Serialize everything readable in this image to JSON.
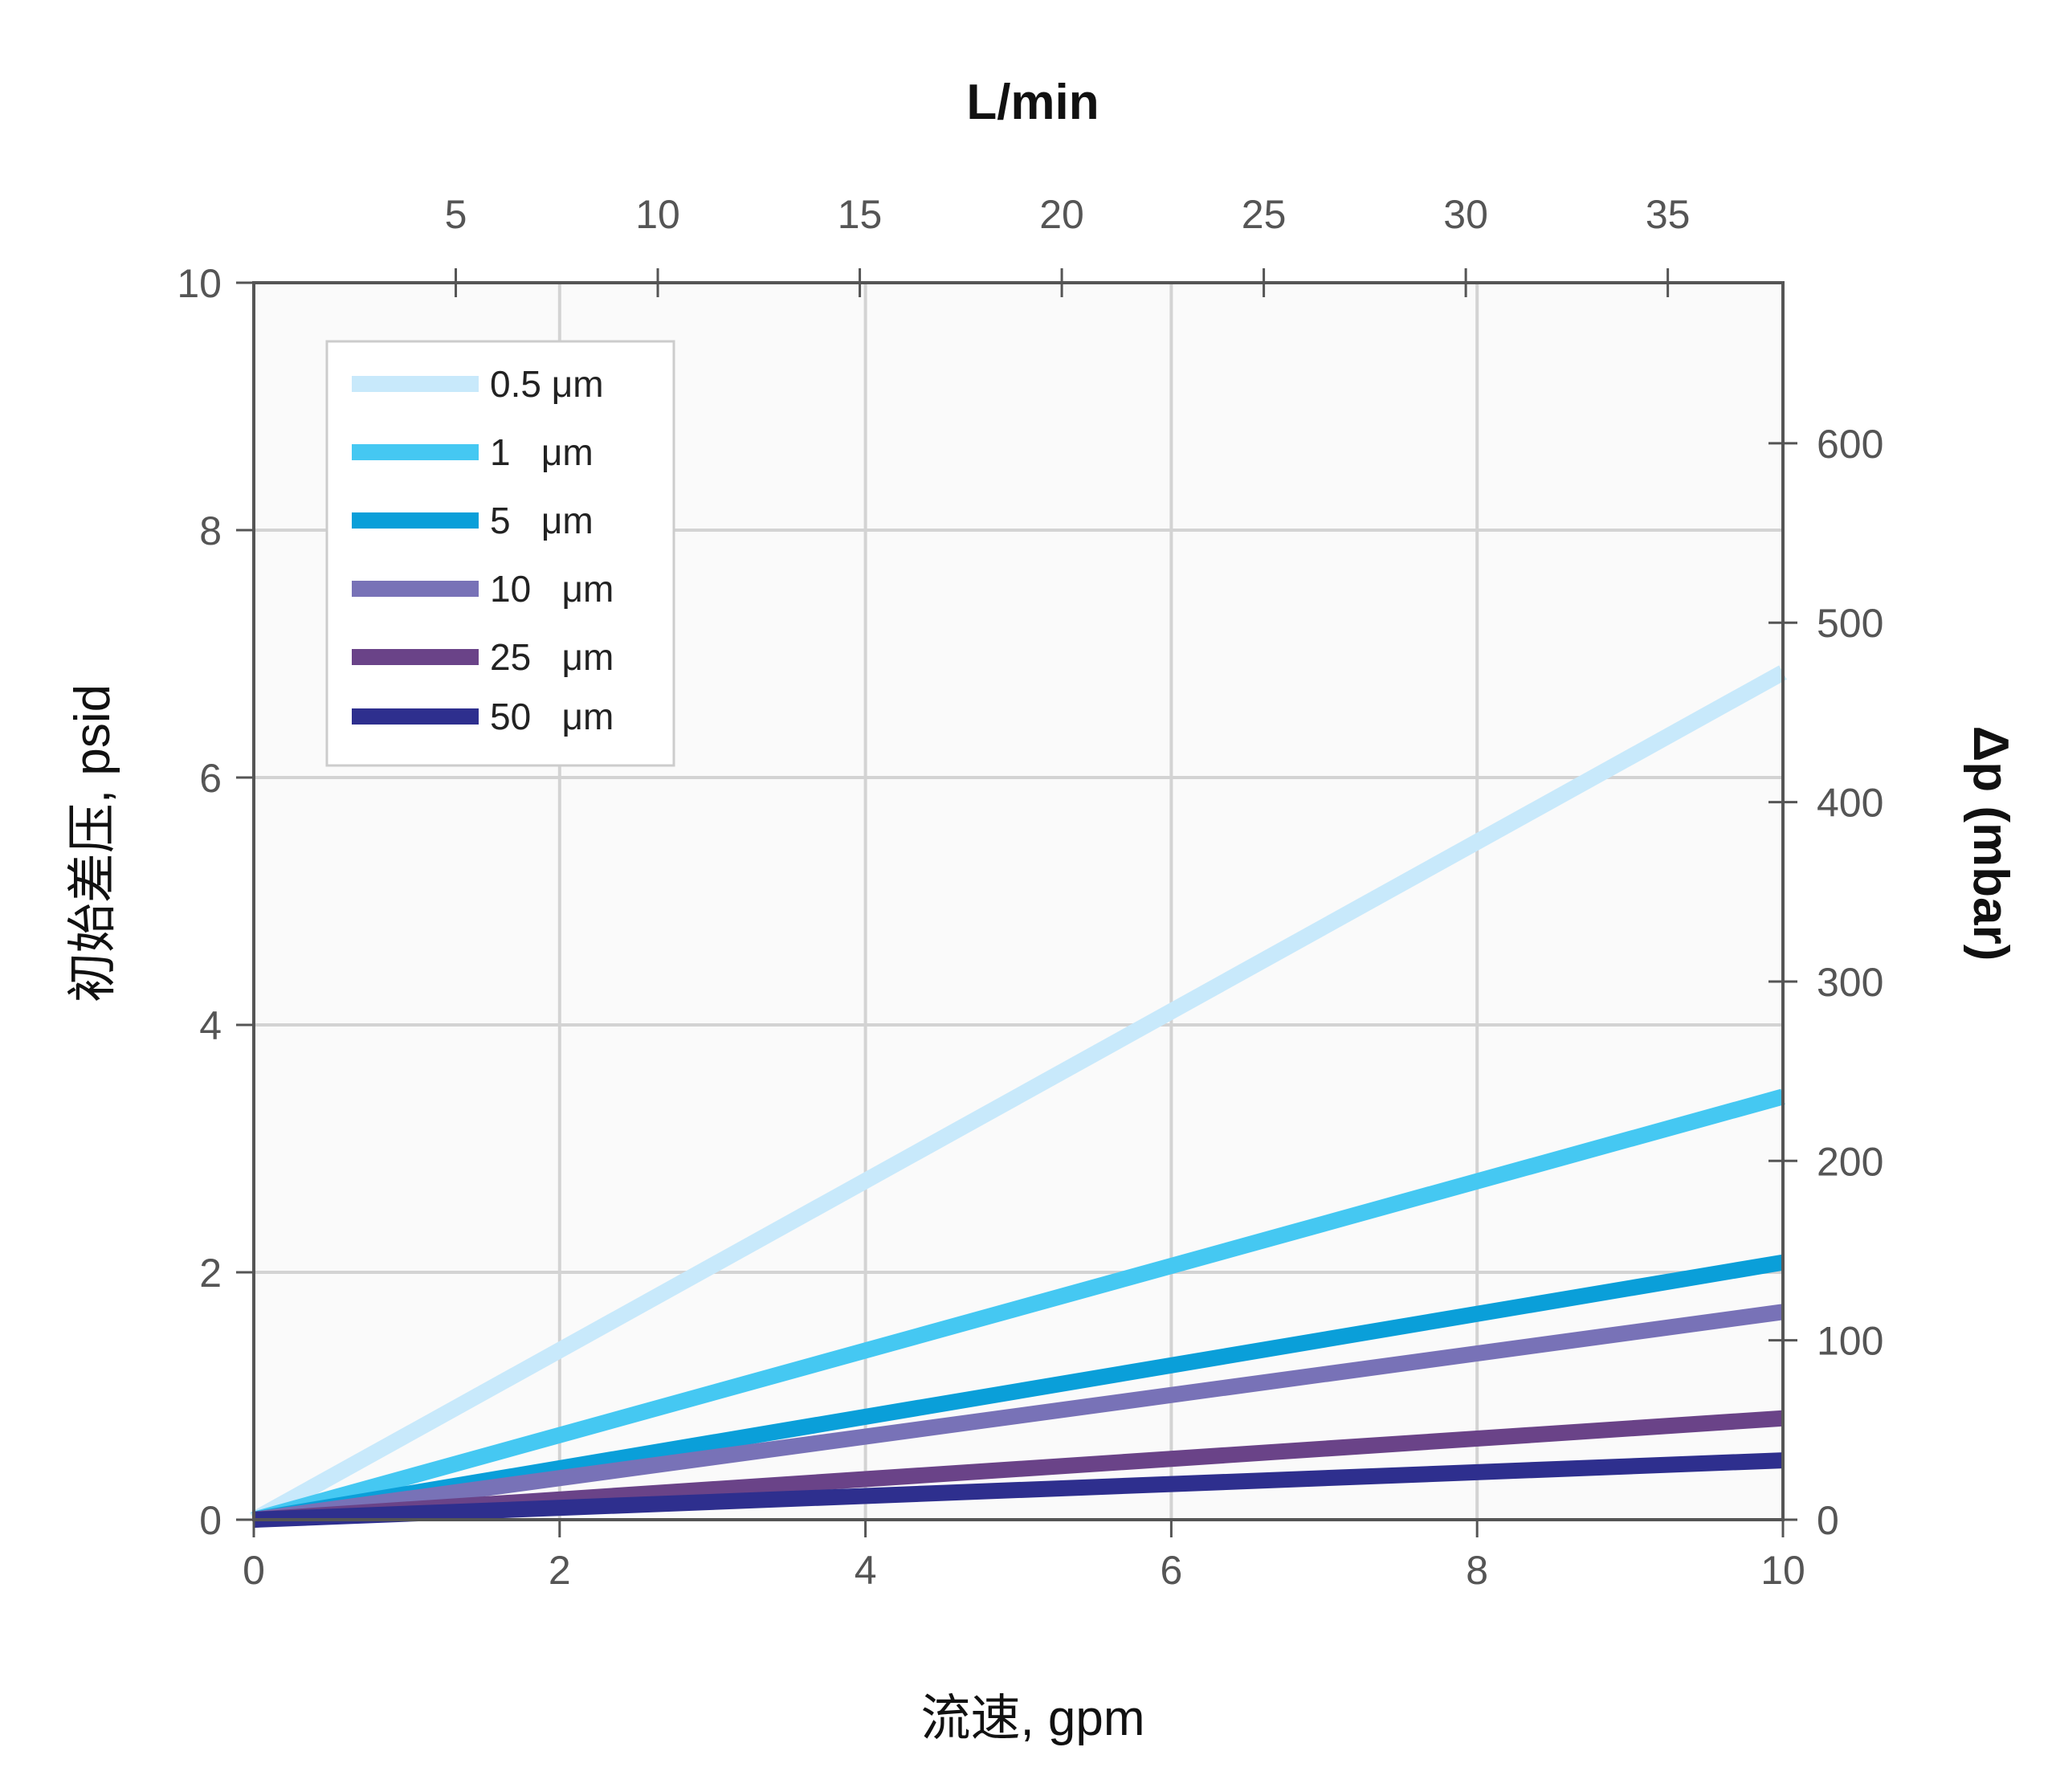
{
  "chart_data": {
    "type": "line",
    "xlabel": "流速, gpm",
    "ylabel": "初始差压, psid",
    "x2label": "L/min",
    "y2label": "Δp (mbar)",
    "xlim": [
      0,
      10
    ],
    "ylim": [
      0,
      10
    ],
    "xticks": [
      "0",
      "2",
      "4",
      "6",
      "8",
      "10"
    ],
    "yticks": [
      "0",
      "2",
      "4",
      "6",
      "8",
      "10"
    ],
    "x2ticks": [
      {
        "value": 5,
        "label": "5"
      },
      {
        "value": 10,
        "label": "10"
      },
      {
        "value": 15,
        "label": "15"
      },
      {
        "value": 20,
        "label": "20"
      },
      {
        "value": 25,
        "label": "25"
      },
      {
        "value": 30,
        "label": "30"
      },
      {
        "value": 35,
        "label": "35"
      }
    ],
    "y2ticks": [
      {
        "value": 0,
        "label": "0"
      },
      {
        "value": 100,
        "label": "100"
      },
      {
        "value": 200,
        "label": "200"
      },
      {
        "value": 300,
        "label": "300"
      },
      {
        "value": 400,
        "label": "400"
      },
      {
        "value": 500,
        "label": "500"
      },
      {
        "value": 600,
        "label": "600"
      }
    ],
    "x2_per_x": 3.785,
    "y2_per_y": 68.95,
    "grid": true,
    "legend_position": "top-left",
    "series": [
      {
        "name": "0.5 μm",
        "color": "#C8E9FB",
        "x": [
          0,
          10
        ],
        "y": [
          0,
          6.85
        ]
      },
      {
        "name": "1   μm",
        "color": "#45C8F2",
        "x": [
          0,
          10
        ],
        "y": [
          0,
          3.42
        ]
      },
      {
        "name": "5   μm",
        "color": "#0A9FD9",
        "x": [
          0,
          10
        ],
        "y": [
          0,
          2.08
        ]
      },
      {
        "name": "10   μm",
        "color": "#7872B7",
        "x": [
          0,
          10
        ],
        "y": [
          0,
          1.68
        ]
      },
      {
        "name": "25   μm",
        "color": "#6A4388",
        "x": [
          0,
          10
        ],
        "y": [
          0,
          0.82
        ]
      },
      {
        "name": "50   μm",
        "color": "#2E2F8E",
        "x": [
          0,
          10
        ],
        "y": [
          0,
          0.48
        ]
      }
    ]
  }
}
